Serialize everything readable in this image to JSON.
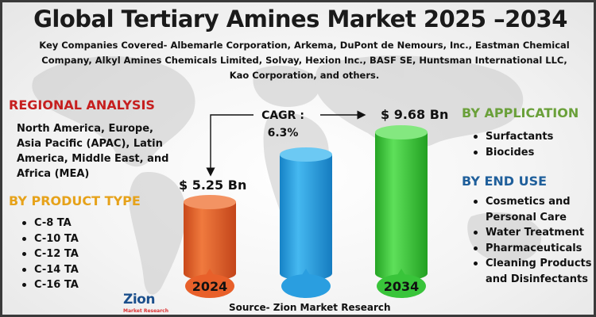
{
  "title": "Global Tertiary Amines Market 2025 –2034",
  "companies": "Key Companies Covered- Albemarle Corporation, Arkema, DuPont de Nemours, Inc., Eastman Chemical Company, Alkyl Amines Chemicals Limited, Solvay, Hexion Inc., BASF SE, Huntsman International LLC, Kao Corporation, and others.",
  "regional": {
    "heading": "REGIONAL ANALYSIS",
    "text": "North America, Europe, Asia Pacific (APAC), Latin America, Middle East, and Africa (MEA)"
  },
  "product_type": {
    "heading": "BY PRODUCT TYPE",
    "items": [
      "C-8 TA",
      "C-10 TA",
      "C-12 TA",
      "C-14 TA",
      "C-16 TA"
    ]
  },
  "application": {
    "heading": "BY APPLICATION",
    "items": [
      "Surfactants",
      "Biocides"
    ]
  },
  "end_use": {
    "heading": "BY END USE",
    "items": [
      "Cosmetics and Personal Care",
      "Water Treatment",
      "Pharmaceuticals",
      "Cleaning Products and Disinfectants"
    ]
  },
  "values": {
    "v2024": "$ 5.25 Bn",
    "v2034": "$ 9.68 Bn",
    "cagr_label": "CAGR :",
    "cagr_value": "6.3%"
  },
  "chart_data": {
    "type": "bar",
    "categories": [
      "2024",
      "",
      "2034"
    ],
    "values": [
      5.25,
      null,
      9.68
    ],
    "title": "",
    "xlabel": "",
    "ylabel": ""
  },
  "colors": {
    "bar_2024": "#e8602a",
    "bar_mid": "#2a9ee0",
    "bar_2034": "#39c43a",
    "regional_heading": "#c61f1f",
    "product_heading": "#e6a21a",
    "application_heading": "#6aa03a",
    "end_use_heading": "#1f5f9b"
  },
  "source": "Source- Zion Market Research",
  "logo": {
    "main": "Zion",
    "sub": "Market Research"
  }
}
